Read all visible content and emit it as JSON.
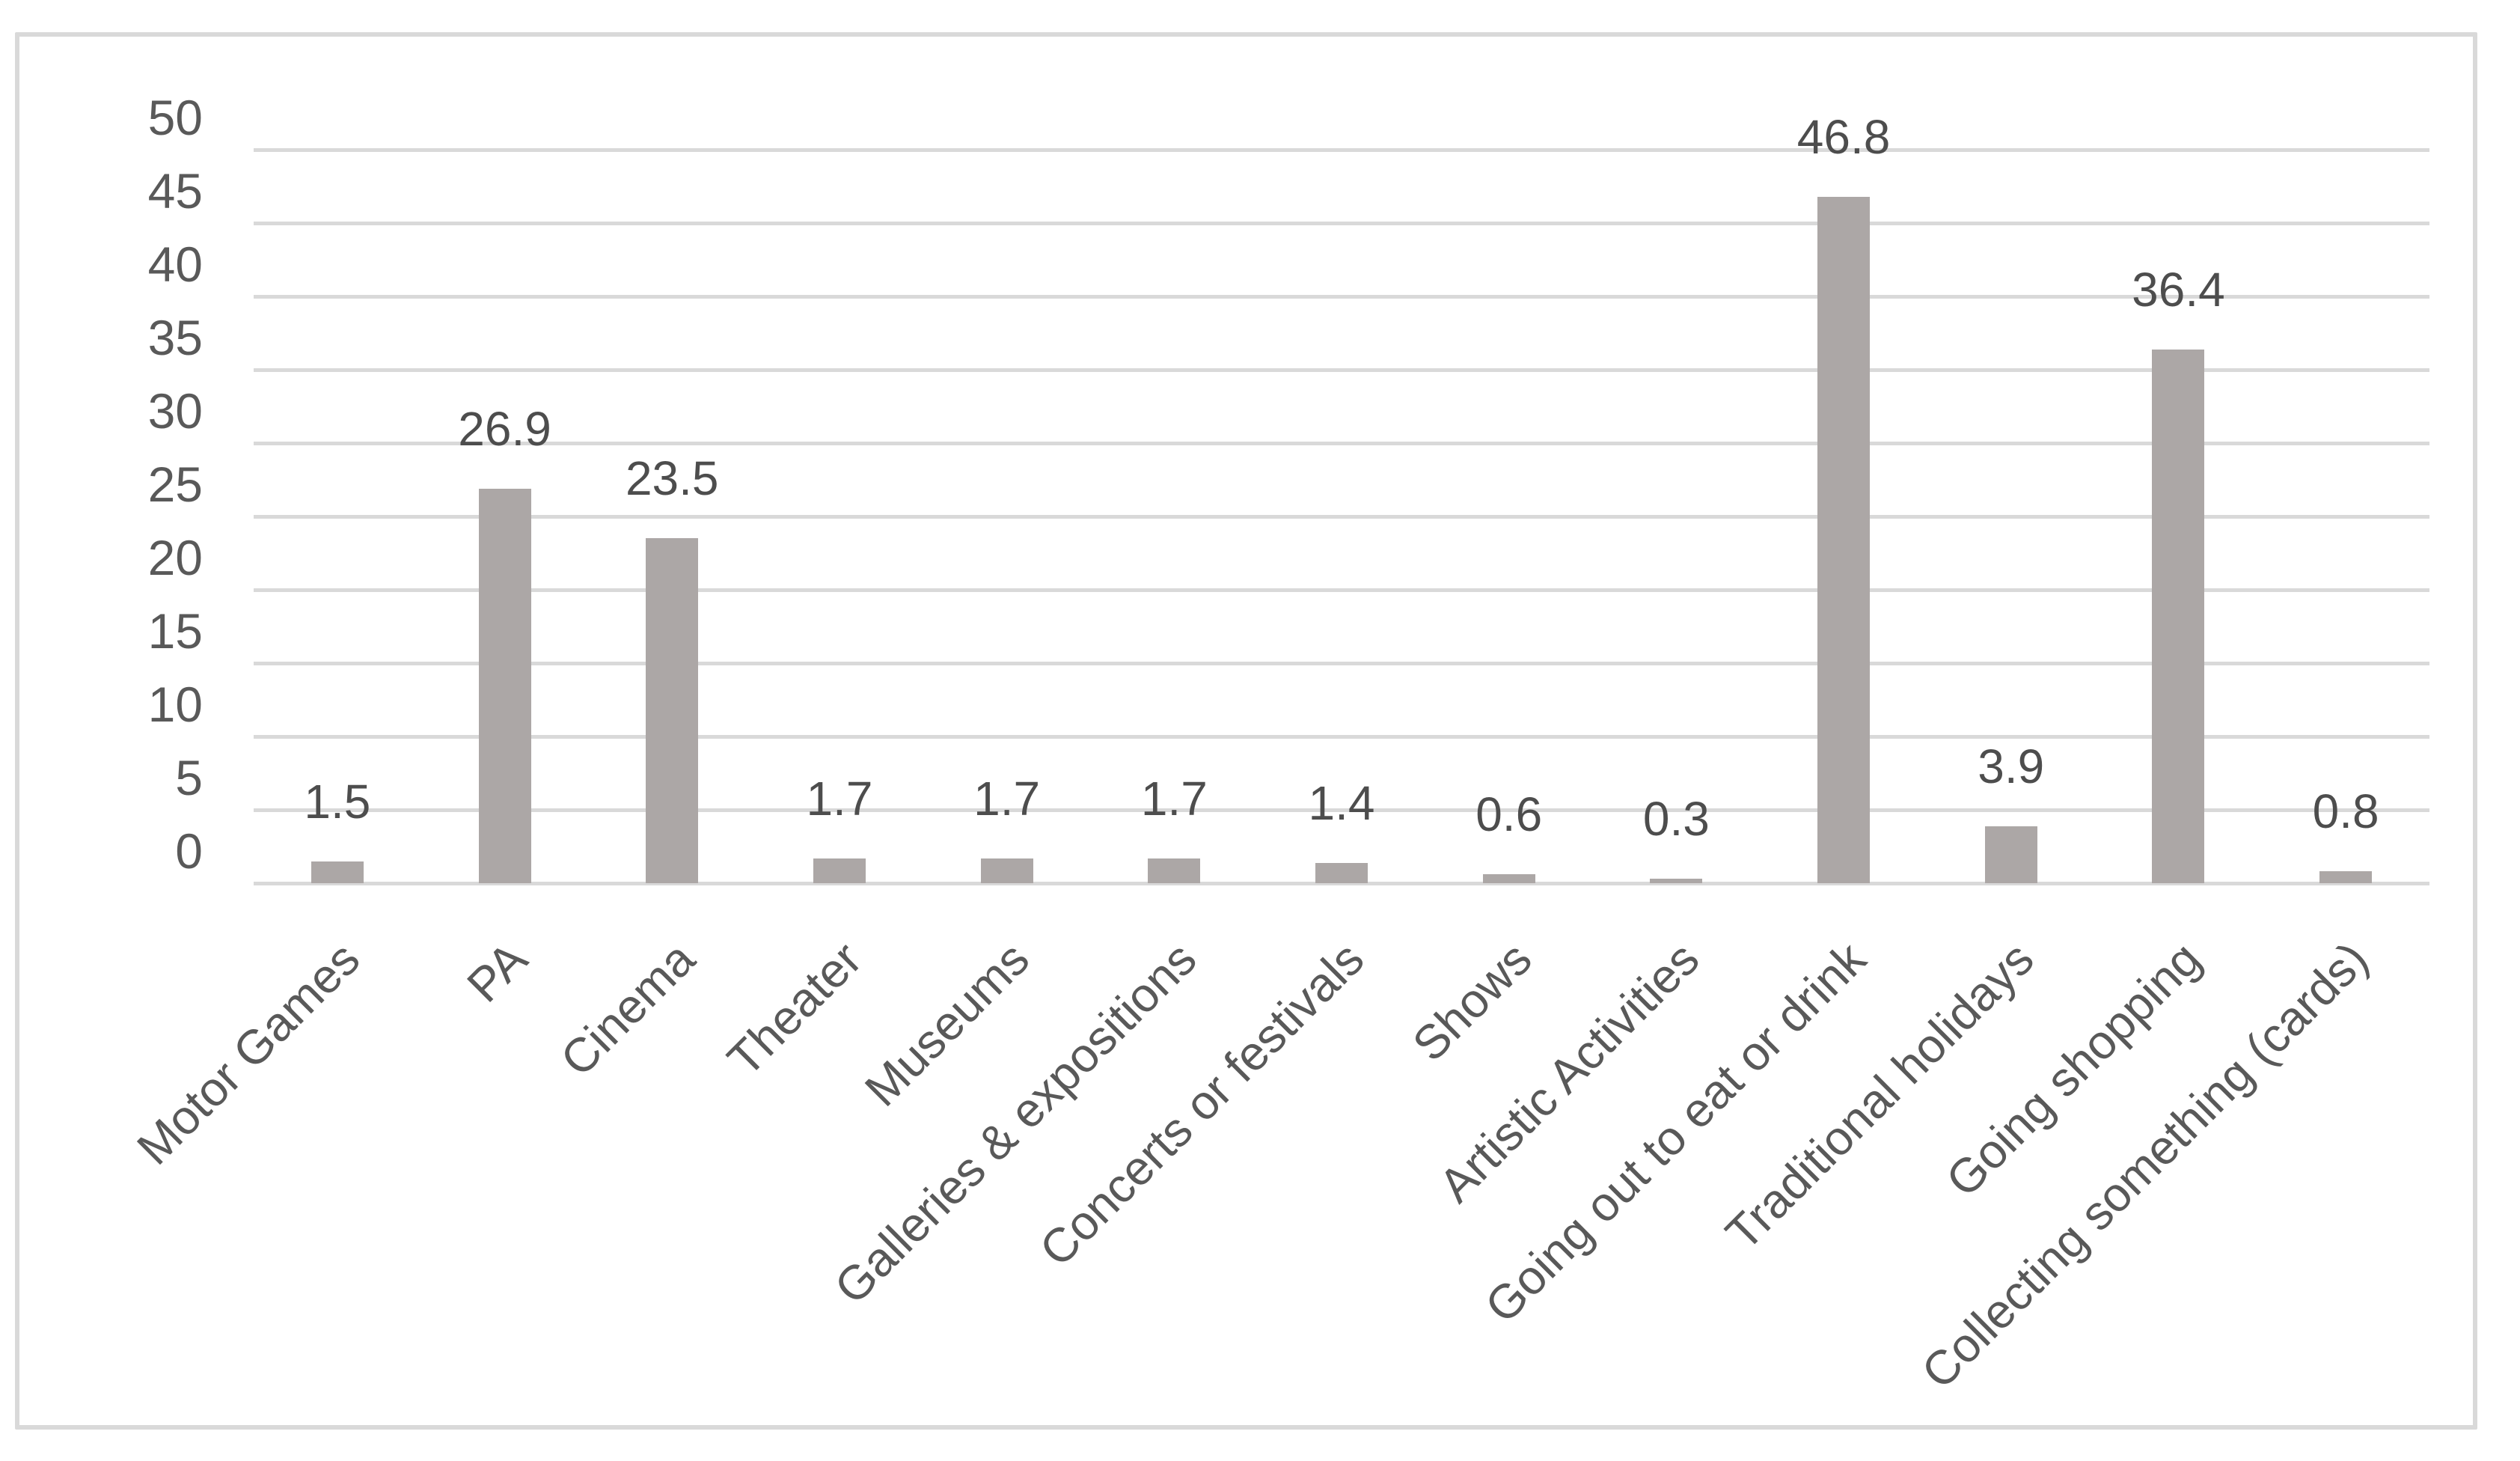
{
  "chart_data": {
    "type": "bar",
    "categories": [
      "Motor Games",
      "PA",
      "Cinema",
      "Theater",
      "Museums",
      "Galleries & expositions",
      "Concerts or festivals",
      "Shows",
      "Artistic Activities",
      "Going out to eat or drink",
      "Traditional holidays",
      "Going shopping",
      "Collecting something (cards)"
    ],
    "values": [
      1.5,
      26.9,
      23.5,
      1.7,
      1.7,
      1.7,
      1.4,
      0.6,
      0.3,
      46.8,
      3.9,
      36.4,
      0.8
    ],
    "data_labels": [
      "1.5",
      "26.9",
      "23.5",
      "1.7",
      "1.7",
      "1.7",
      "1.4",
      "0.6",
      "0.3",
      "46.8",
      "3.9",
      "36.4",
      "0.8"
    ],
    "title": "",
    "xlabel": "",
    "ylabel": "",
    "ylim": [
      0,
      50
    ],
    "yticks": [
      0,
      5,
      10,
      15,
      20,
      25,
      30,
      35,
      40,
      45,
      50
    ],
    "grid": "horizontal",
    "legend": "none",
    "bar_color": "#aca7a6",
    "gridline_color": "#d9d9d9",
    "text_color": "#595959",
    "data_label_color": "#4d4d4d",
    "frame_border_color": "#d9d9d9",
    "background_color": "#ffffff"
  }
}
